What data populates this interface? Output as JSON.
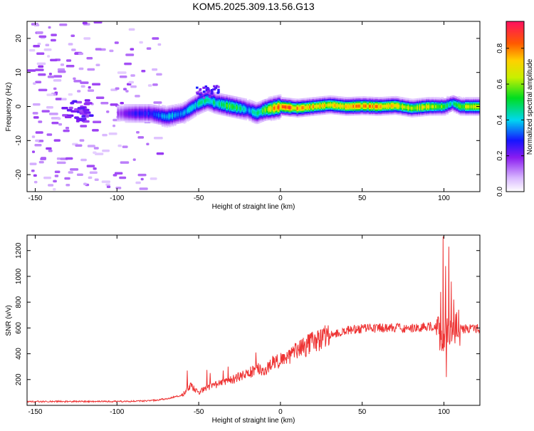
{
  "title": "KOM5.2025.309.13.56.G13",
  "chart_data": [
    {
      "type": "heatmap",
      "title": "KOM5.2025.309.13.56.G13",
      "xlabel": "Height of straight line (km)",
      "ylabel": "Frequency (Hz)",
      "xlim": [
        -155,
        122
      ],
      "ylim": [
        -25,
        25
      ],
      "xticks": [
        -150,
        -100,
        -50,
        0,
        50,
        100
      ],
      "yticks": [
        -20,
        -10,
        0,
        10,
        20
      ],
      "colorbar": {
        "label": "Normalized spectral amplitude",
        "range": [
          0.0,
          0.95
        ],
        "ticks": [
          0.0,
          0.2,
          0.4,
          0.6,
          0.8
        ],
        "tick_labels": [
          "0.0",
          "0.2",
          "0.4",
          "0.6",
          "0.8"
        ]
      },
      "ridge": {
        "x": [
          -100,
          -90,
          -80,
          -70,
          -60,
          -50,
          -45,
          -40,
          -30,
          -20,
          -15,
          -10,
          0,
          10,
          20,
          30,
          40,
          50,
          60,
          70,
          80,
          90,
          100,
          105,
          110,
          122
        ],
        "freq": [
          -2,
          -2,
          -2,
          -3,
          -2,
          1,
          2,
          1,
          0,
          -1,
          -2,
          -1,
          0,
          -0.5,
          0,
          0.5,
          0,
          0.2,
          0,
          0.3,
          -0.5,
          0,
          0,
          1,
          0,
          0
        ],
        "amplitude": [
          0.15,
          0.25,
          0.3,
          0.4,
          0.35,
          0.45,
          0.5,
          0.45,
          0.55,
          0.4,
          0.45,
          0.6,
          0.85,
          0.8,
          0.75,
          0.7,
          0.75,
          0.8,
          0.75,
          0.7,
          0.65,
          0.7,
          0.55,
          0.45,
          0.6,
          0.7
        ]
      },
      "noise_region_x": [
        -155,
        -75
      ]
    },
    {
      "type": "line",
      "series": [
        {
          "name": "SNR",
          "color": "#ee3333"
        }
      ],
      "xlabel": "Height of straight line (km)",
      "ylabel": "SNR (v/v)",
      "xlim": [
        -155,
        122
      ],
      "ylim": [
        0,
        1320
      ],
      "xticks": [
        -150,
        -100,
        -50,
        0,
        50,
        100
      ],
      "yticks": [
        200,
        400,
        600,
        800,
        1000,
        1200
      ],
      "envelope_x": [
        -155,
        -130,
        -100,
        -80,
        -70,
        -60,
        -55,
        -50,
        -45,
        -40,
        -30,
        -20,
        -15,
        -10,
        -5,
        0,
        10,
        20,
        30,
        40,
        50,
        60,
        70,
        80,
        90,
        95,
        100,
        105,
        110,
        122
      ],
      "envelope_y": [
        30,
        30,
        30,
        35,
        50,
        80,
        150,
        100,
        140,
        160,
        200,
        240,
        290,
        260,
        330,
        350,
        420,
        490,
        540,
        580,
        595,
        600,
        600,
        600,
        610,
        620,
        500,
        650,
        590,
        600
      ],
      "spikes": [
        {
          "x": -57,
          "y": 270
        },
        {
          "x": -45,
          "y": 275
        },
        {
          "x": -43,
          "y": 250
        },
        {
          "x": -35,
          "y": 270
        },
        {
          "x": -32,
          "y": 300
        },
        {
          "x": -15,
          "y": 410
        },
        {
          "x": 98,
          "y": 880
        },
        {
          "x": 99.5,
          "y": 1310
        },
        {
          "x": 101,
          "y": 1080
        },
        {
          "x": 103,
          "y": 1230
        },
        {
          "x": 104.5,
          "y": 960
        },
        {
          "x": 101.5,
          "y": 220
        },
        {
          "x": 106,
          "y": 820
        },
        {
          "x": 107,
          "y": 640
        }
      ]
    }
  ]
}
